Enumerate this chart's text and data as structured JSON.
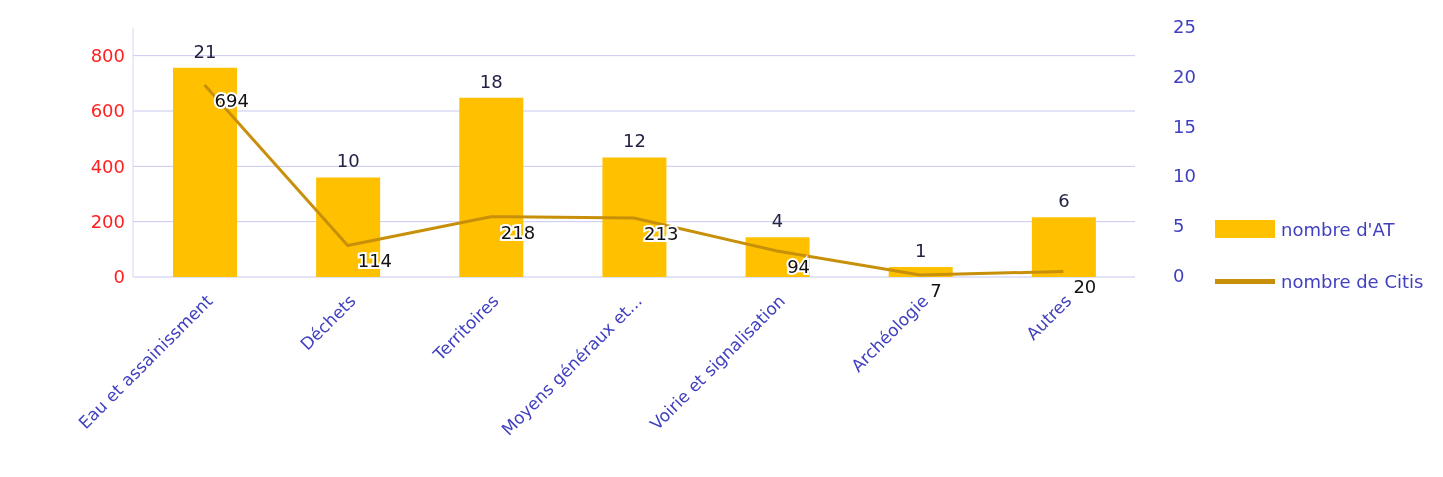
{
  "chart_data": {
    "type": "bar",
    "categories": [
      "Eau et assainissment",
      "Déchets",
      "Territoires",
      "Moyens généraux et...",
      "Voirie et signalisation",
      "Archéologie",
      "Autres"
    ],
    "series": [
      {
        "name": "nombre d'AT",
        "axis": "y2",
        "color": "#ffc000",
        "values": [
          21,
          10,
          18,
          12,
          4,
          1,
          6
        ]
      },
      {
        "name": "nombre de Citis",
        "type": "line",
        "color": "#c8900a",
        "values": [
          694,
          114,
          218,
          213,
          94,
          7,
          20
        ]
      }
    ],
    "ylim": [
      0,
      900
    ],
    "yticks": [
      0,
      200,
      400,
      600,
      800
    ],
    "y2lim": [
      0,
      25
    ],
    "y2ticks": [
      0,
      5,
      10,
      15,
      20,
      25
    ],
    "grid": "y",
    "legend": "right",
    "data_labels": true,
    "marker": "none",
    "line_style": "solid"
  }
}
